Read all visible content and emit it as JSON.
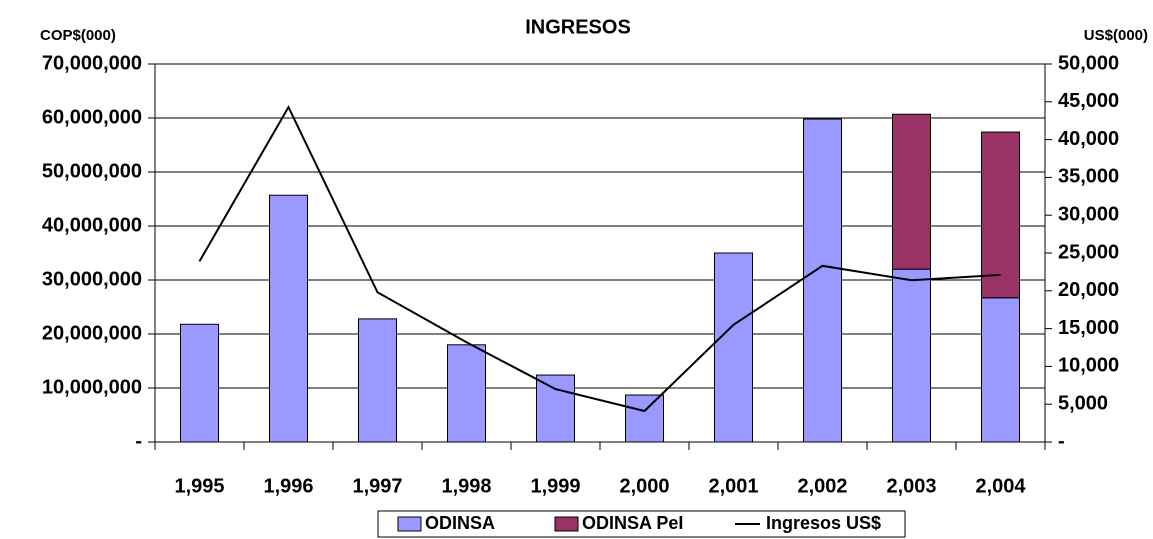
{
  "chart_data": {
    "type": "bar",
    "stacked": true,
    "title": "INGRESOS",
    "y_label": "COP$(000)",
    "y2_label": "US$(000)",
    "categories": [
      "1,995",
      "1,996",
      "1,997",
      "1,998",
      "1,999",
      "2,000",
      "2,001",
      "2,002",
      "2,003",
      "2,004"
    ],
    "series": [
      {
        "name": "ODINSA",
        "type": "bar",
        "color": "#9999ff",
        "values": [
          21800000,
          45700000,
          22800000,
          18000000,
          12400000,
          8700000,
          35000000,
          59800000,
          32000000,
          26700000
        ]
      },
      {
        "name": "ODINSA PeI",
        "type": "bar",
        "color": "#993366",
        "values": [
          null,
          null,
          null,
          null,
          null,
          null,
          null,
          null,
          28700000,
          30700000
        ]
      },
      {
        "name": "Ingresos US$",
        "type": "line",
        "axis": "y2",
        "color": "#000000",
        "values": [
          23900,
          44300,
          19800,
          13200,
          7000,
          4100,
          15500,
          23300,
          21400,
          22100
        ]
      }
    ],
    "ylim": [
      0,
      70000000
    ],
    "yticks": [
      {
        "value": 0,
        "label": "-"
      },
      {
        "value": 10000000,
        "label": "10,000,000"
      },
      {
        "value": 20000000,
        "label": "20,000,000"
      },
      {
        "value": 30000000,
        "label": "30,000,000"
      },
      {
        "value": 40000000,
        "label": "40,000,000"
      },
      {
        "value": 50000000,
        "label": "50,000,000"
      },
      {
        "value": 60000000,
        "label": "60,000,000"
      },
      {
        "value": 70000000,
        "label": "70,000,000"
      }
    ],
    "y2lim": [
      0,
      50000
    ],
    "y2ticks": [
      {
        "value": 0,
        "label": "-"
      },
      {
        "value": 5000,
        "label": "5,000"
      },
      {
        "value": 10000,
        "label": "10,000"
      },
      {
        "value": 15000,
        "label": "15,000"
      },
      {
        "value": 20000,
        "label": "20,000"
      },
      {
        "value": 25000,
        "label": "25,000"
      },
      {
        "value": 30000,
        "label": "30,000"
      },
      {
        "value": 35000,
        "label": "35,000"
      },
      {
        "value": 40000,
        "label": "40,000"
      },
      {
        "value": 45000,
        "label": "45,000"
      },
      {
        "value": 50000,
        "label": "50,000"
      }
    ],
    "grid": true,
    "legend": "bottom"
  }
}
